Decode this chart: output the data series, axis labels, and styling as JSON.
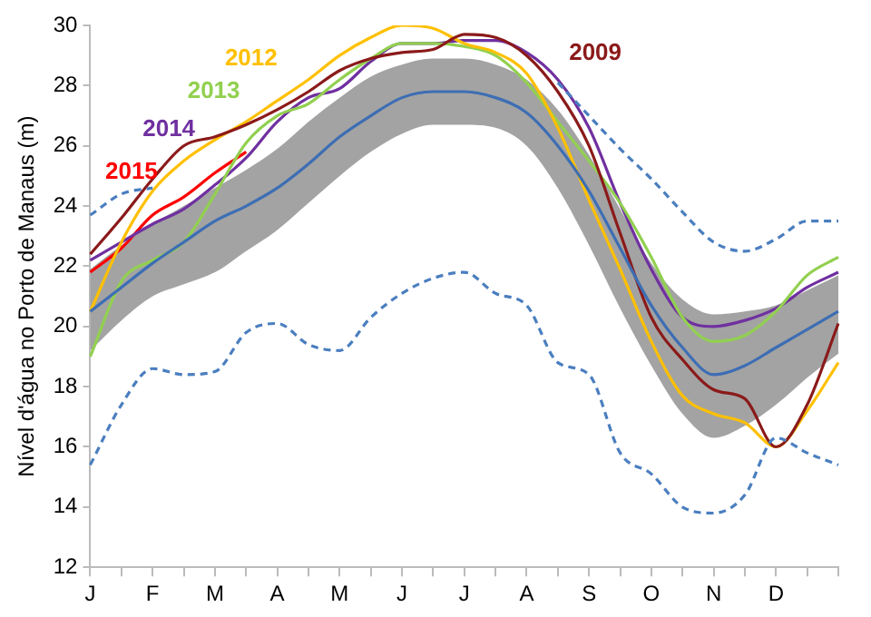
{
  "chart_data": {
    "type": "line",
    "ylabel": "Nível d'água no Porto de Manaus (m)",
    "categories": [
      "J",
      null,
      "F",
      null,
      "M",
      null,
      "A",
      null,
      "M",
      null,
      "J",
      null,
      "J",
      null,
      "A",
      null,
      "S",
      null,
      "O",
      null,
      "N",
      null,
      "D",
      null,
      null
    ],
    "ylim": [
      12,
      30
    ],
    "yticks": [
      12,
      14,
      16,
      18,
      20,
      22,
      24,
      26,
      28,
      30
    ],
    "grid": false,
    "legend": false,
    "marker": "none",
    "line_style": "solid",
    "series": [
      {
        "color": "#3d6eb4",
        "values": [
          20.5,
          21.3,
          22.1,
          22.8,
          23.5,
          24.0,
          24.6,
          25.4,
          26.3,
          27.0,
          27.6,
          27.8,
          27.8,
          27.6,
          27.1,
          26.0,
          24.5,
          22.6,
          20.7,
          19.3,
          18.4,
          18.7,
          19.3,
          19.9,
          20.5
        ],
        "lower": [
          19.2,
          20.2,
          21.0,
          21.4,
          21.8,
          22.5,
          23.2,
          24.1,
          25.0,
          25.8,
          26.4,
          26.7,
          26.7,
          26.6,
          26.0,
          24.6,
          22.7,
          20.6,
          18.7,
          17.1,
          16.3,
          16.7,
          17.4,
          18.3,
          19.1
        ],
        "upper": [
          21.9,
          22.7,
          23.4,
          24.0,
          24.6,
          25.2,
          25.9,
          26.8,
          27.6,
          28.3,
          28.7,
          28.9,
          28.9,
          28.7,
          28.2,
          27.2,
          25.7,
          23.9,
          22.1,
          20.9,
          20.4,
          20.5,
          20.7,
          21.2,
          21.7
        ]
      },
      {
        "color": "#4a7ebf",
        "line_style": "dashed",
        "values": [
          23.7,
          24.4,
          24.6,
          null,
          null,
          null,
          null,
          null,
          null,
          null,
          null,
          null,
          null,
          null,
          null,
          28.1,
          27.0,
          25.9,
          24.9,
          23.8,
          22.8,
          22.5,
          22.9,
          23.5,
          23.5
        ]
      },
      {
        "color": "#4a7ebf",
        "line_style": "dashed",
        "values": [
          15.4,
          17.4,
          18.6,
          18.4,
          18.5,
          19.8,
          20.1,
          19.4,
          19.2,
          20.3,
          21.1,
          21.6,
          21.8,
          21.1,
          20.7,
          18.8,
          18.4,
          15.8,
          15.1,
          14.0,
          13.8,
          14.4,
          16.3,
          15.8,
          15.4
        ]
      },
      {
        "name": "2009",
        "color": "#8b1a1a",
        "values": [
          22.4,
          23.6,
          24.9,
          26.0,
          26.3,
          26.7,
          27.2,
          27.8,
          28.5,
          28.9,
          29.1,
          29.2,
          29.7,
          29.6,
          29.0,
          27.8,
          26.0,
          23.1,
          20.3,
          18.9,
          17.9,
          17.6,
          16.0,
          17.4,
          20.1
        ]
      },
      {
        "name": "2012",
        "color": "#ffc000",
        "values": [
          20.5,
          22.8,
          24.5,
          25.5,
          26.2,
          26.8,
          27.5,
          28.2,
          29.0,
          29.6,
          30.0,
          29.9,
          29.4,
          29.1,
          28.4,
          26.6,
          24.2,
          21.9,
          19.5,
          17.7,
          17.1,
          16.8,
          16.0,
          17.2,
          18.8
        ]
      },
      {
        "name": "2013",
        "color": "#92d050",
        "values": [
          19.0,
          21.5,
          22.2,
          22.8,
          24.4,
          26.1,
          27.0,
          27.4,
          28.2,
          28.9,
          29.4,
          29.4,
          29.3,
          29.0,
          28.1,
          26.8,
          25.5,
          24.1,
          22.3,
          20.3,
          19.5,
          19.7,
          20.5,
          21.7,
          22.3
        ]
      },
      {
        "name": "2014",
        "color": "#7030a0",
        "values": [
          22.2,
          22.8,
          23.4,
          23.9,
          24.7,
          25.6,
          26.8,
          27.6,
          27.9,
          28.8,
          29.4,
          29.4,
          29.5,
          29.5,
          29.1,
          28.2,
          26.6,
          24.1,
          21.9,
          20.3,
          20.0,
          20.2,
          20.6,
          21.3,
          21.8
        ]
      },
      {
        "name": "2015",
        "color": "#ff0000",
        "values": [
          21.8,
          22.6,
          23.7,
          24.3,
          25.1,
          25.8,
          null,
          null,
          null,
          null,
          null,
          null,
          null,
          null,
          null,
          null,
          null,
          null,
          null,
          null,
          null,
          null,
          null,
          null,
          null
        ]
      }
    ]
  }
}
